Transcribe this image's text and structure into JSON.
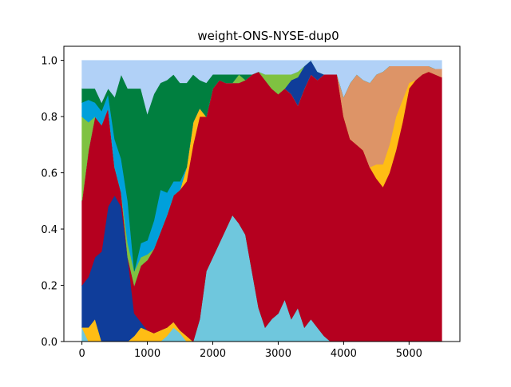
{
  "chart_data": {
    "type": "area",
    "stacked": true,
    "title": "weight-ONS-NYSE-dup0",
    "xlabel": "",
    "ylabel": "",
    "xlim": [
      -276,
      5777
    ],
    "ylim": [
      0,
      1.05
    ],
    "x_ticks": [
      0,
      1000,
      2000,
      3000,
      4000,
      5000
    ],
    "y_ticks": [
      0.0,
      0.2,
      0.4,
      0.6,
      0.8,
      1.0
    ],
    "x_tick_labels": [
      "0",
      "1000",
      "2000",
      "3000",
      "4000",
      "5000"
    ],
    "y_tick_labels": [
      "0.0",
      "0.2",
      "0.4",
      "0.6",
      "0.8",
      "1.0"
    ],
    "grid": false,
    "legend": "none",
    "x": [
      0,
      100,
      200,
      300,
      400,
      500,
      600,
      700,
      800,
      900,
      1000,
      1100,
      1200,
      1300,
      1400,
      1500,
      1600,
      1700,
      1800,
      1900,
      2000,
      2100,
      2200,
      2300,
      2400,
      2500,
      2600,
      2700,
      2800,
      2900,
      3000,
      3100,
      3200,
      3300,
      3400,
      3500,
      3600,
      3700,
      3800,
      3900,
      4000,
      4100,
      4200,
      4300,
      4400,
      4500,
      4600,
      4700,
      4800,
      4900,
      5000,
      5100,
      5200,
      5300,
      5400,
      5500
    ],
    "series": [
      {
        "color": "#6fc7dd",
        "values": [
          0.05,
          0.0,
          0.0,
          0.0,
          0.0,
          0.0,
          0.0,
          0.0,
          0.0,
          0.0,
          0.0,
          0.0,
          0.0,
          0.02,
          0.05,
          0.03,
          0.0,
          0.0,
          0.08,
          0.25,
          0.3,
          0.35,
          0.4,
          0.45,
          0.42,
          0.38,
          0.25,
          0.12,
          0.05,
          0.08,
          0.1,
          0.15,
          0.08,
          0.12,
          0.05,
          0.08,
          0.05,
          0.02,
          0.0,
          0.0,
          0.0,
          0.0,
          0.0,
          0.0,
          0.0,
          0.0,
          0.0,
          0.0,
          0.0,
          0.0,
          0.0,
          0.0,
          0.0,
          0.0,
          0.0,
          0.0
        ]
      },
      {
        "color": "#ffbd14",
        "values": [
          0.0,
          0.05,
          0.08,
          0.0,
          0.0,
          0.0,
          0.0,
          0.0,
          0.02,
          0.05,
          0.04,
          0.03,
          0.04,
          0.03,
          0.02,
          0.01,
          0.02,
          0.0,
          0.0,
          0.0,
          0.0,
          0.0,
          0.0,
          0.0,
          0.0,
          0.0,
          0.0,
          0.0,
          0.0,
          0.0,
          0.0,
          0.0,
          0.0,
          0.0,
          0.0,
          0.0,
          0.0,
          0.0,
          0.0,
          0.0,
          0.0,
          0.0,
          0.0,
          0.0,
          0.0,
          0.0,
          0.0,
          0.0,
          0.0,
          0.0,
          0.0,
          0.0,
          0.0,
          0.0,
          0.0,
          0.0
        ]
      },
      {
        "color": "#0f3d9a",
        "values": [
          0.15,
          0.18,
          0.22,
          0.32,
          0.48,
          0.52,
          0.48,
          0.3,
          0.08,
          0.02,
          0.0,
          0.0,
          0.0,
          0.0,
          0.0,
          0.0,
          0.0,
          0.0,
          0.0,
          0.0,
          0.0,
          0.0,
          0.0,
          0.0,
          0.0,
          0.0,
          0.0,
          0.0,
          0.0,
          0.0,
          0.0,
          0.0,
          0.0,
          0.0,
          0.0,
          0.0,
          0.0,
          0.0,
          0.0,
          0.0,
          0.0,
          0.0,
          0.0,
          0.0,
          0.0,
          0.0,
          0.0,
          0.0,
          0.0,
          0.0,
          0.0,
          0.0,
          0.0,
          0.0,
          0.0,
          0.0
        ]
      },
      {
        "color": "#b5001f",
        "values": [
          0.3,
          0.45,
          0.5,
          0.45,
          0.35,
          0.1,
          0.05,
          0.0,
          0.1,
          0.2,
          0.25,
          0.3,
          0.35,
          0.4,
          0.45,
          0.5,
          0.55,
          0.7,
          0.72,
          0.55,
          0.6,
          0.58,
          0.52,
          0.47,
          0.5,
          0.55,
          0.7,
          0.84,
          0.88,
          0.82,
          0.78,
          0.75,
          0.8,
          0.72,
          0.85,
          0.87,
          0.88,
          0.93,
          0.95,
          0.95,
          0.8,
          0.72,
          0.7,
          0.68,
          0.62,
          0.58,
          0.55,
          0.6,
          0.68,
          0.78,
          0.9,
          0.93,
          0.95,
          0.96,
          0.95,
          0.94
        ]
      },
      {
        "color": "#ffbd14",
        "values": [
          0.0,
          0.0,
          0.0,
          0.0,
          0.0,
          0.0,
          0.0,
          0.0,
          0.0,
          0.0,
          0.0,
          0.0,
          0.0,
          0.0,
          0.0,
          0.0,
          0.05,
          0.08,
          0.03,
          0.0,
          0.0,
          0.0,
          0.0,
          0.0,
          0.0,
          0.0,
          0.0,
          0.0,
          0.0,
          0.0,
          0.0,
          0.0,
          0.0,
          0.0,
          0.0,
          0.0,
          0.0,
          0.0,
          0.0,
          0.0,
          0.0,
          0.0,
          0.0,
          0.0,
          0.0,
          0.05,
          0.08,
          0.1,
          0.12,
          0.08,
          0.02,
          0.0,
          0.0,
          0.0,
          0.0,
          0.0
        ]
      },
      {
        "color": "#dd9467",
        "values": [
          0.0,
          0.0,
          0.0,
          0.0,
          0.0,
          0.0,
          0.0,
          0.0,
          0.0,
          0.0,
          0.0,
          0.0,
          0.0,
          0.0,
          0.0,
          0.0,
          0.0,
          0.0,
          0.0,
          0.0,
          0.0,
          0.0,
          0.0,
          0.0,
          0.0,
          0.0,
          0.0,
          0.0,
          0.0,
          0.0,
          0.0,
          0.0,
          0.0,
          0.0,
          0.0,
          0.0,
          0.0,
          0.0,
          0.0,
          0.0,
          0.07,
          0.2,
          0.25,
          0.25,
          0.3,
          0.32,
          0.33,
          0.28,
          0.18,
          0.12,
          0.06,
          0.05,
          0.03,
          0.02,
          0.02,
          0.03
        ]
      },
      {
        "color": "#0f3d9a",
        "values": [
          0.0,
          0.0,
          0.0,
          0.0,
          0.0,
          0.0,
          0.0,
          0.0,
          0.0,
          0.0,
          0.0,
          0.0,
          0.0,
          0.0,
          0.0,
          0.0,
          0.0,
          0.0,
          0.0,
          0.0,
          0.0,
          0.0,
          0.0,
          0.0,
          0.0,
          0.0,
          0.0,
          0.0,
          0.0,
          0.0,
          0.0,
          0.0,
          0.05,
          0.1,
          0.08,
          0.05,
          0.03,
          0.0,
          0.0,
          0.0,
          0.0,
          0.0,
          0.0,
          0.0,
          0.0,
          0.0,
          0.0,
          0.0,
          0.0,
          0.0,
          0.0,
          0.0,
          0.0,
          0.0,
          0.0,
          0.0
        ]
      },
      {
        "color": "#7fc241",
        "values": [
          0.3,
          0.1,
          0.0,
          0.0,
          0.0,
          0.0,
          0.0,
          0.05,
          0.05,
          0.03,
          0.02,
          0.0,
          0.0,
          0.0,
          0.0,
          0.0,
          0.0,
          0.0,
          0.0,
          0.0,
          0.0,
          0.0,
          0.0,
          0.0,
          0.03,
          0.0,
          0.0,
          0.0,
          0.02,
          0.05,
          0.07,
          0.05,
          0.02,
          0.02,
          0.0,
          0.0,
          0.0,
          0.0,
          0.0,
          0.0,
          0.0,
          0.0,
          0.0,
          0.0,
          0.0,
          0.0,
          0.0,
          0.0,
          0.0,
          0.0,
          0.0,
          0.0,
          0.0,
          0.0,
          0.0,
          0.0
        ]
      },
      {
        "color": "#00a0db",
        "values": [
          0.05,
          0.08,
          0.05,
          0.05,
          0.05,
          0.1,
          0.12,
          0.15,
          0.0,
          0.05,
          0.05,
          0.1,
          0.15,
          0.08,
          0.05,
          0.03,
          0.0,
          0.0,
          0.0,
          0.0,
          0.0,
          0.0,
          0.0,
          0.0,
          0.0,
          0.0,
          0.0,
          0.0,
          0.0,
          0.0,
          0.0,
          0.0,
          0.0,
          0.0,
          0.0,
          0.0,
          0.0,
          0.0,
          0.0,
          0.0,
          0.0,
          0.0,
          0.0,
          0.0,
          0.0,
          0.0,
          0.0,
          0.0,
          0.0,
          0.0,
          0.0,
          0.0,
          0.0,
          0.0,
          0.0,
          0.0
        ]
      },
      {
        "color": "#007f3f",
        "values": [
          0.05,
          0.04,
          0.05,
          0.03,
          0.02,
          0.15,
          0.3,
          0.4,
          0.65,
          0.55,
          0.45,
          0.45,
          0.38,
          0.4,
          0.38,
          0.35,
          0.3,
          0.17,
          0.1,
          0.12,
          0.05,
          0.02,
          0.03,
          0.03,
          0.0,
          0.02,
          0.0,
          0.0,
          0.0,
          0.0,
          0.0,
          0.0,
          0.0,
          0.0,
          0.0,
          0.0,
          0.0,
          0.0,
          0.0,
          0.0,
          0.0,
          0.0,
          0.0,
          0.0,
          0.0,
          0.0,
          0.0,
          0.0,
          0.0,
          0.0,
          0.0,
          0.0,
          0.0,
          0.0,
          0.0,
          0.0
        ]
      },
      {
        "color": "#b1d1f7",
        "values": [
          0.1,
          0.1,
          0.1,
          0.15,
          0.1,
          0.15,
          0.05,
          0.1,
          0.1,
          0.1,
          0.19,
          0.12,
          0.08,
          0.07,
          0.05,
          0.08,
          0.08,
          0.05,
          0.07,
          0.08,
          0.05,
          0.05,
          0.05,
          0.05,
          0.05,
          0.05,
          0.05,
          0.04,
          0.05,
          0.05,
          0.05,
          0.05,
          0.05,
          0.04,
          0.02,
          0.0,
          0.04,
          0.05,
          0.05,
          0.05,
          0.13,
          0.08,
          0.05,
          0.07,
          0.08,
          0.05,
          0.04,
          0.02,
          0.02,
          0.02,
          0.02,
          0.02,
          0.02,
          0.02,
          0.03,
          0.03
        ]
      }
    ]
  }
}
